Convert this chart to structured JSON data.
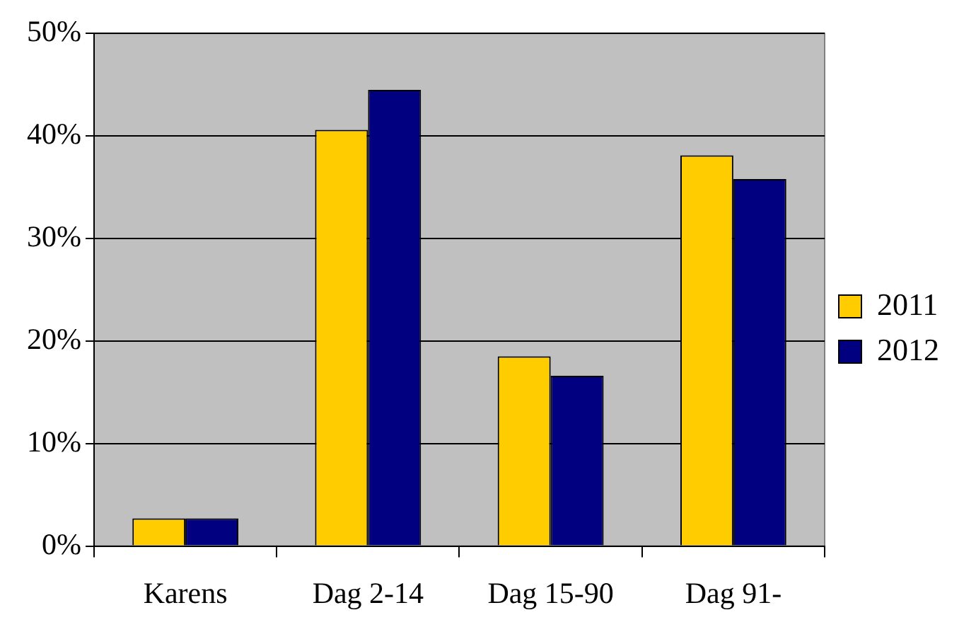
{
  "chart_data": {
    "type": "bar",
    "categories": [
      "Karens",
      "Dag 2-14",
      "Dag 15-90",
      "Dag 91-"
    ],
    "series": [
      {
        "name": "2011",
        "color": "#ffcc00",
        "values": [
          2.7,
          40.6,
          18.5,
          38.1
        ]
      },
      {
        "name": "2012",
        "color": "#000080",
        "values": [
          2.7,
          44.5,
          16.6,
          35.8
        ]
      }
    ],
    "ylim": [
      0,
      50
    ],
    "yticks": [
      {
        "value": 0,
        "label": "0%"
      },
      {
        "value": 10,
        "label": "10%"
      },
      {
        "value": 20,
        "label": "20%"
      },
      {
        "value": 30,
        "label": "30%"
      },
      {
        "value": 40,
        "label": "40%"
      },
      {
        "value": 50,
        "label": "50%"
      }
    ],
    "grid": "y",
    "legend": "right"
  }
}
